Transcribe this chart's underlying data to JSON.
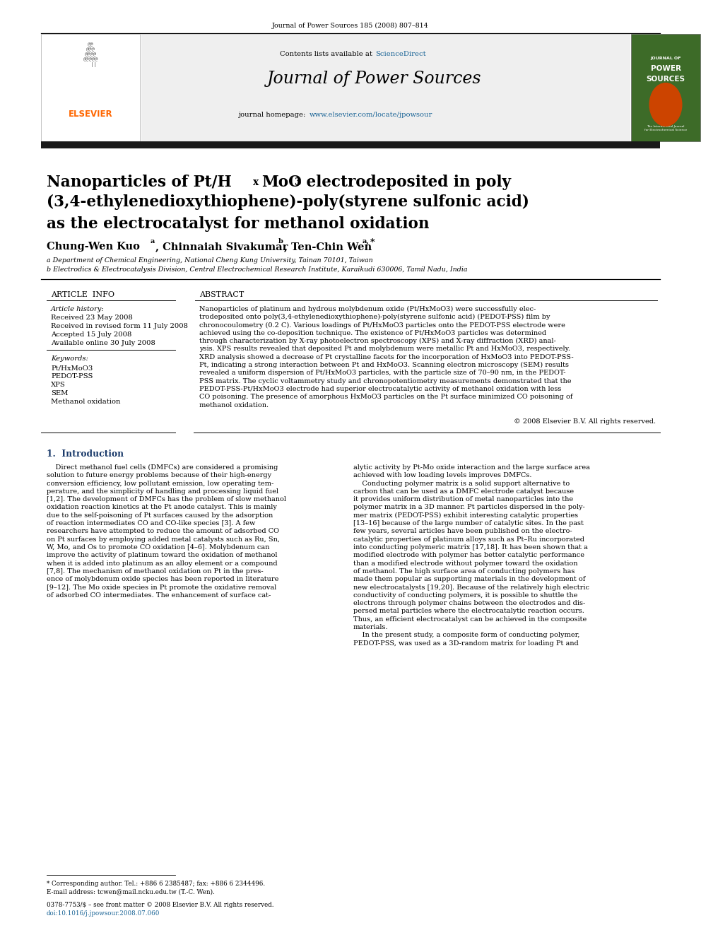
{
  "page_width": 9.92,
  "page_height": 13.23,
  "bg_color": "#ffffff",
  "journal_ref": "Journal of Power Sources 185 (2008) 807–814",
  "contents_text": "Contents lists available at ",
  "sciencedirect_text": "ScienceDirect",
  "journal_name": "Journal of Power Sources",
  "homepage_text": "journal homepage: ",
  "homepage_url": "www.elsevier.com/locate/jpowsour",
  "article_info_header": "ARTICLE  INFO",
  "abstract_header": "ABSTRACT",
  "article_history_label": "Article history:",
  "received": "Received 23 May 2008",
  "revised": "Received in revised form 11 July 2008",
  "accepted": "Accepted 15 July 2008",
  "available": "Available online 30 July 2008",
  "keywords_label": "Keywords:",
  "kw1": "Pt/HxMoO3",
  "kw2": "PEDOT-PSS",
  "kw3": "XPS",
  "kw4": "SEM",
  "kw5": "Methanol oxidation",
  "copyright": "© 2008 Elsevier B.V. All rights reserved.",
  "intro_header": "1.  Introduction",
  "footnote_star": "* Corresponding author. Tel.: +886 6 2385487; fax: +886 6 2344496.",
  "footnote_email": "E-mail address: tcwen@mail.ncku.edu.tw (T.-C. Wen).",
  "footnote_issn": "0378-7753/$ – see front matter © 2008 Elsevier B.V. All rights reserved.",
  "footnote_doi": "doi:10.1016/j.jpowsour.2008.07.060",
  "elsevier_color": "#FF6600",
  "sciencedirect_color": "#1a6496",
  "url_color": "#1a6496",
  "header_bg": "#efefef",
  "dark_bar_color": "#1a1a1a",
  "intro_bold_color": "#1a3a6a",
  "affil_a": "a Department of Chemical Engineering, National Cheng Kung University, Tainan 70101, Taiwan",
  "affil_b": "b Electrodics & Electrocatalysis Division, Central Electrochemical Research Institute, Karaikudi 630006, Tamil Nadu, India",
  "abstract_lines": [
    "Nanoparticles of platinum and hydrous molybdenum oxide (Pt/HxMoO3) were successfully elec-",
    "trodeposited onto poly(3,4-ethylenedioxythiophene)-poly(styrene sulfonic acid) (PEDOT-PSS) film by",
    "chronocoulometry (0.2 C). Various loadings of Pt/HxMoO3 particles onto the PEDOT-PSS electrode were",
    "achieved using the co-deposition technique. The existence of Pt/HxMoO3 particles was determined",
    "through characterization by X-ray photoelectron spectroscopy (XPS) and X-ray diffraction (XRD) anal-",
    "ysis. XPS results revealed that deposited Pt and molybdenum were metallic Pt and HxMoO3, respectively.",
    "XRD analysis showed a decrease of Pt crystalline facets for the incorporation of HxMoO3 into PEDOT-PSS-",
    "Pt, indicating a strong interaction between Pt and HxMoO3. Scanning electron microscopy (SEM) results",
    "revealed a uniform dispersion of Pt/HxMoO3 particles, with the particle size of 70–90 nm, in the PEDOT-",
    "PSS matrix. The cyclic voltammetry study and chronopotentiometry measurements demonstrated that the",
    "PEDOT-PSS-Pt/HxMoO3 electrode had superior electrocatalytic activity of methanol oxidation with less",
    "CO poisoning. The presence of amorphous HxMoO3 particles on the Pt surface minimized CO poisoning of",
    "methanol oxidation."
  ],
  "intro_col1_lines": [
    "    Direct methanol fuel cells (DMFCs) are considered a promising",
    "solution to future energy problems because of their high-energy",
    "conversion efficiency, low pollutant emission, low operating tem-",
    "perature, and the simplicity of handling and processing liquid fuel",
    "[1,2]. The development of DMFCs has the problem of slow methanol",
    "oxidation reaction kinetics at the Pt anode catalyst. This is mainly",
    "due to the self-poisoning of Pt surfaces caused by the adsorption",
    "of reaction intermediates CO and CO-like species [3]. A few",
    "researchers have attempted to reduce the amount of adsorbed CO",
    "on Pt surfaces by employing added metal catalysts such as Ru, Sn,",
    "W, Mo, and Os to promote CO oxidation [4–6]. Molybdenum can",
    "improve the activity of platinum toward the oxidation of methanol",
    "when it is added into platinum as an alloy element or a compound",
    "[7,8]. The mechanism of methanol oxidation on Pt in the pres-",
    "ence of molybdenum oxide species has been reported in literature",
    "[9–12]. The Mo oxide species in Pt promote the oxidative removal",
    "of adsorbed CO intermediates. The enhancement of surface cat-"
  ],
  "intro_col2_lines": [
    "alytic activity by Pt-Mo oxide interaction and the large surface area",
    "achieved with low loading levels improves DMFCs.",
    "    Conducting polymer matrix is a solid support alternative to",
    "carbon that can be used as a DMFC electrode catalyst because",
    "it provides uniform distribution of metal nanoparticles into the",
    "polymer matrix in a 3D manner. Pt particles dispersed in the poly-",
    "mer matrix (PEDOT-PSS) exhibit interesting catalytic properties",
    "[13–16] because of the large number of catalytic sites. In the past",
    "few years, several articles have been published on the electro-",
    "catalytic properties of platinum alloys such as Pt–Ru incorporated",
    "into conducting polymeric matrix [17,18]. It has been shown that a",
    "modified electrode with polymer has better catalytic performance",
    "than a modified electrode without polymer toward the oxidation",
    "of methanol. The high surface area of conducting polymers has",
    "made them popular as supporting materials in the development of",
    "new electrocatalysts [19,20]. Because of the relatively high electric",
    "conductivity of conducting polymers, it is possible to shuttle the",
    "electrons through polymer chains between the electrodes and dis-",
    "persed metal particles where the electrocatalytic reaction occurs.",
    "Thus, an efficient electrocatalyst can be achieved in the composite",
    "materials.",
    "    In the present study, a composite form of conducting polymer,",
    "PEDOT-PSS, was used as a 3D-random matrix for loading Pt and"
  ]
}
